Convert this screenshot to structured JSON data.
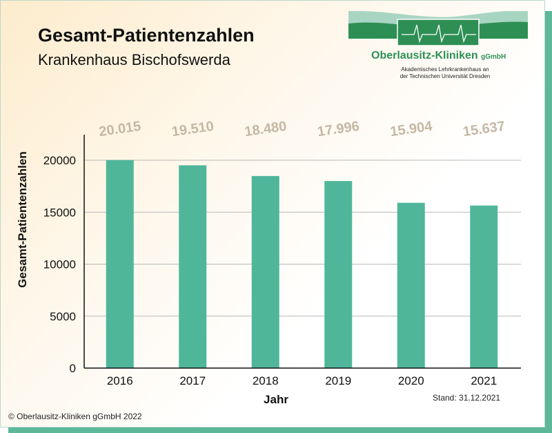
{
  "header": {
    "title": "Gesamt-Patientenzahlen",
    "subtitle": "Krankenhaus Bischofswerda"
  },
  "logo": {
    "name": "Oberlausitz-Kliniken",
    "name_suffix": "gGmbH",
    "line1": "Akademisches Lehrkrankenhaus an",
    "line2": "der Technischen Universität Dresden"
  },
  "stand": "Stand: 31.12.2021",
  "copyright": "© Oberlausitz-Kliniken gGmbH 2022",
  "colors": {
    "bar": "#4fb69a",
    "value_label": "#c4b8a4",
    "logo_green": "#2e8f55",
    "logo_light": "#a8d5c2"
  },
  "chart_data": {
    "type": "bar",
    "categories": [
      "2016",
      "2017",
      "2018",
      "2019",
      "2020",
      "2021"
    ],
    "values": [
      20015,
      19510,
      18480,
      17996,
      15904,
      15637
    ],
    "value_labels": [
      "20.015",
      "19.510",
      "18.480",
      "17.996",
      "15.904",
      "15.637"
    ],
    "xlabel": "Jahr",
    "ylabel": "Gesamt-Patientenzahlen",
    "ylim": [
      0,
      22500
    ],
    "yticks": [
      0,
      5000,
      10000,
      15000,
      20000
    ],
    "grid": true
  }
}
